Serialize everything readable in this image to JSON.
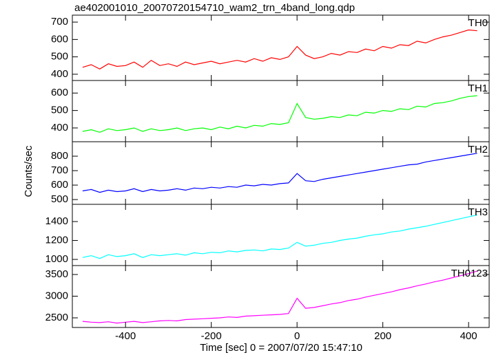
{
  "title": "ae402001010_20070720154710_wam2_trn_4band_long.qdp",
  "x_label": "Time [sec] 0 = 2007/07/20 15:47:10",
  "y_label": "Counts/sec",
  "xlim": [
    -524,
    448
  ],
  "xticks": [
    -400,
    -200,
    0,
    200,
    400
  ],
  "x": [
    -500,
    -480,
    -460,
    -440,
    -420,
    -400,
    -380,
    -360,
    -340,
    -320,
    -300,
    -280,
    -260,
    -240,
    -220,
    -200,
    -180,
    -160,
    -140,
    -120,
    -100,
    -80,
    -60,
    -40,
    -20,
    0,
    20,
    40,
    60,
    80,
    100,
    120,
    140,
    160,
    180,
    200,
    220,
    240,
    260,
    280,
    300,
    320,
    340,
    360,
    380,
    400,
    420
  ],
  "chart_data": [
    {
      "type": "line",
      "name": "TH0",
      "color": "#ff0000",
      "ylim": [
        364,
        740
      ],
      "yticks": [
        400,
        500,
        600,
        700
      ],
      "values": [
        440,
        455,
        430,
        460,
        445,
        450,
        470,
        440,
        480,
        450,
        460,
        445,
        470,
        455,
        465,
        475,
        460,
        470,
        480,
        470,
        490,
        475,
        495,
        485,
        500,
        560,
        510,
        490,
        500,
        520,
        510,
        530,
        525,
        545,
        535,
        560,
        550,
        570,
        565,
        590,
        580,
        600,
        615,
        625,
        640,
        655,
        650
      ]
    },
    {
      "type": "line",
      "name": "TH1",
      "color": "#00ff00",
      "ylim": [
        321,
        672
      ],
      "yticks": [
        400,
        500,
        600
      ],
      "values": [
        380,
        390,
        375,
        395,
        385,
        390,
        400,
        380,
        395,
        385,
        390,
        400,
        385,
        395,
        400,
        390,
        405,
        395,
        410,
        400,
        415,
        410,
        425,
        420,
        430,
        540,
        460,
        450,
        455,
        465,
        460,
        475,
        470,
        490,
        485,
        500,
        495,
        510,
        505,
        525,
        520,
        540,
        545,
        555,
        570,
        580,
        585
      ]
    },
    {
      "type": "line",
      "name": "TH2",
      "color": "#0000ff",
      "ylim": [
        467,
        900
      ],
      "yticks": [
        500,
        600,
        700,
        800
      ],
      "values": [
        560,
        570,
        550,
        565,
        555,
        560,
        575,
        555,
        570,
        560,
        565,
        575,
        565,
        580,
        575,
        585,
        580,
        590,
        585,
        600,
        595,
        605,
        600,
        610,
        615,
        680,
        630,
        625,
        640,
        650,
        660,
        670,
        680,
        690,
        700,
        710,
        720,
        730,
        740,
        745,
        760,
        770,
        780,
        790,
        800,
        810,
        820
      ]
    },
    {
      "type": "line",
      "name": "TH3",
      "color": "#00ffff",
      "ylim": [
        935,
        1582
      ],
      "yticks": [
        1000,
        1200,
        1400
      ],
      "values": [
        1020,
        1040,
        1010,
        1050,
        1030,
        1040,
        1060,
        1020,
        1050,
        1040,
        1050,
        1060,
        1045,
        1070,
        1060,
        1075,
        1070,
        1090,
        1080,
        1095,
        1100,
        1090,
        1110,
        1105,
        1120,
        1180,
        1140,
        1150,
        1170,
        1180,
        1200,
        1215,
        1225,
        1245,
        1260,
        1270,
        1290,
        1300,
        1320,
        1335,
        1350,
        1370,
        1390,
        1410,
        1430,
        1450,
        1470
      ]
    },
    {
      "type": "line",
      "name": "TH0123",
      "color": "#ff00ff",
      "ylim": [
        2278,
        3706
      ],
      "yticks": [
        2500,
        3000,
        3500
      ],
      "values": [
        2420,
        2400,
        2390,
        2410,
        2380,
        2400,
        2420,
        2390,
        2410,
        2430,
        2440,
        2430,
        2460,
        2470,
        2480,
        2490,
        2500,
        2520,
        2510,
        2540,
        2550,
        2560,
        2570,
        2580,
        2600,
        2950,
        2720,
        2740,
        2780,
        2820,
        2850,
        2900,
        2930,
        2980,
        3020,
        3060,
        3100,
        3150,
        3190,
        3240,
        3280,
        3330,
        3370,
        3420,
        3470,
        3520,
        3580
      ]
    }
  ]
}
